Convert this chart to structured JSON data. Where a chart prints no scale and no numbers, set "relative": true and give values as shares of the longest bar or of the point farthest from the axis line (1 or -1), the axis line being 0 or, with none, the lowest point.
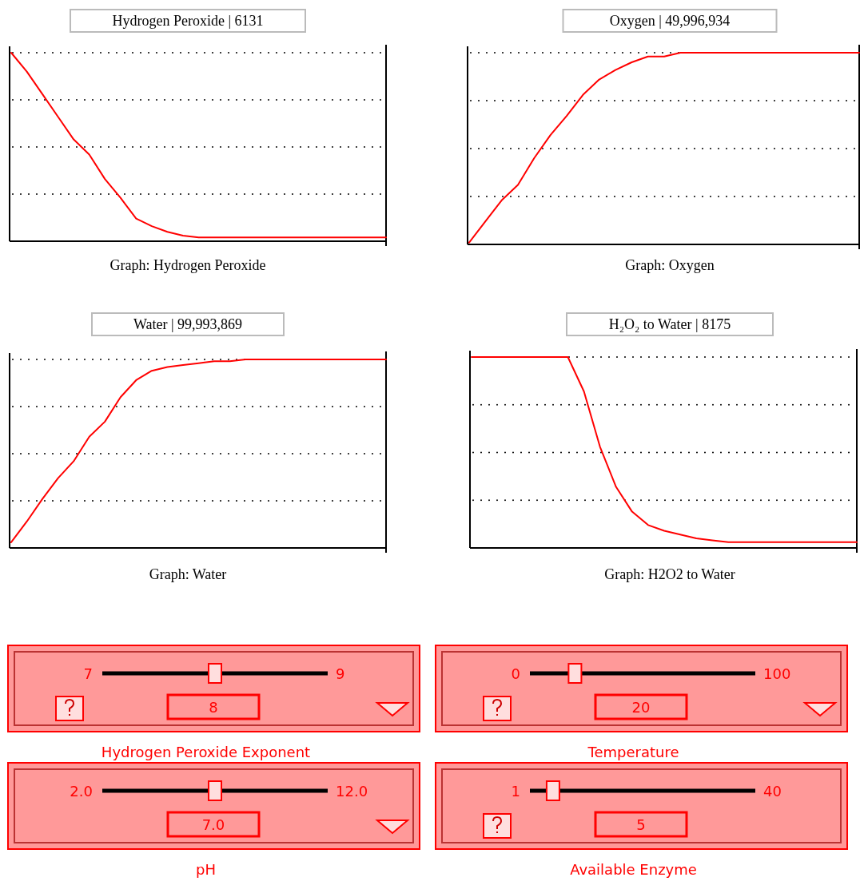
{
  "chart_data": [
    {
      "type": "line",
      "title": "Hydrogen Peroxide  |  6131",
      "subtitle": "Graph:  Hydrogen Peroxide",
      "relative": true,
      "grid": true,
      "categories": [
        null,
        null,
        null,
        null,
        null,
        null,
        null,
        null,
        null,
        null,
        null,
        null,
        null,
        null,
        null,
        null,
        null,
        null,
        null,
        null,
        null,
        null,
        null,
        null,
        null
      ],
      "series": [
        {
          "color": "#ff0000",
          "values": [
            1.0,
            0.9,
            0.78,
            0.66,
            0.54,
            0.46,
            0.33,
            0.23,
            0.12,
            0.08,
            0.05,
            0.03,
            0.02,
            0.02,
            0.02,
            0.02,
            0.02,
            0.02,
            0.02,
            0.02,
            0.02,
            0.02,
            0.02,
            0.02,
            0.02
          ]
        }
      ]
    },
    {
      "type": "line",
      "title": "Oxygen  |    49,996,934",
      "subtitle": "Graph: Oxygen",
      "relative": true,
      "grid": true,
      "categories": [
        null,
        null,
        null,
        null,
        null,
        null,
        null,
        null,
        null,
        null,
        null,
        null,
        null,
        null,
        null,
        null,
        null,
        null,
        null,
        null,
        null,
        null,
        null,
        null,
        null
      ],
      "series": [
        {
          "color": "#ff0000",
          "values": [
            0.01,
            0.12,
            0.23,
            0.31,
            0.45,
            0.57,
            0.67,
            0.78,
            0.86,
            0.91,
            0.95,
            0.98,
            0.98,
            1.0,
            1.0,
            1.0,
            1.0,
            1.0,
            1.0,
            1.0,
            1.0,
            1.0,
            1.0,
            1.0,
            1.0
          ]
        }
      ]
    },
    {
      "type": "line",
      "title": "Water  |  99,993,869",
      "subtitle": "Graph: Water",
      "relative": true,
      "grid": true,
      "categories": [
        null,
        null,
        null,
        null,
        null,
        null,
        null,
        null,
        null,
        null,
        null,
        null,
        null,
        null,
        null,
        null,
        null,
        null,
        null,
        null,
        null,
        null,
        null,
        null,
        null
      ],
      "series": [
        {
          "color": "#ff0000",
          "values": [
            0.03,
            0.14,
            0.26,
            0.37,
            0.46,
            0.59,
            0.67,
            0.8,
            0.89,
            0.94,
            0.96,
            0.97,
            0.98,
            0.99,
            0.99,
            1.0,
            1.0,
            1.0,
            1.0,
            1.0,
            1.0,
            1.0,
            1.0,
            1.0,
            1.0
          ]
        }
      ]
    },
    {
      "type": "line",
      "title": "H₂O₂ to Water  |  8175",
      "subtitle": "Graph: H2O2 to Water",
      "relative": true,
      "grid": true,
      "categories": [
        null,
        null,
        null,
        null,
        null,
        null,
        null,
        null,
        null,
        null,
        null,
        null,
        null,
        null,
        null,
        null,
        null,
        null,
        null,
        null,
        null,
        null,
        null,
        null,
        null
      ],
      "series": [
        {
          "color": "#ff0000",
          "values": [
            1.0,
            1.0,
            1.0,
            1.0,
            1.0,
            1.0,
            1.0,
            0.82,
            0.53,
            0.32,
            0.19,
            0.12,
            0.09,
            0.07,
            0.05,
            0.04,
            0.03,
            0.03,
            0.03,
            0.03,
            0.03,
            0.03,
            0.03,
            0.03,
            0.03
          ]
        }
      ]
    },
    {
      "type": "other",
      "annotations": [
        "7",
        "9",
        "8",
        "Hydrogen Peroxide Exponent",
        "0",
        "100",
        "20",
        "Temperature",
        "2.0",
        "12.0",
        "7.0",
        "pH",
        "1",
        "40",
        "5",
        "Available Enzyme"
      ]
    }
  ]
}
